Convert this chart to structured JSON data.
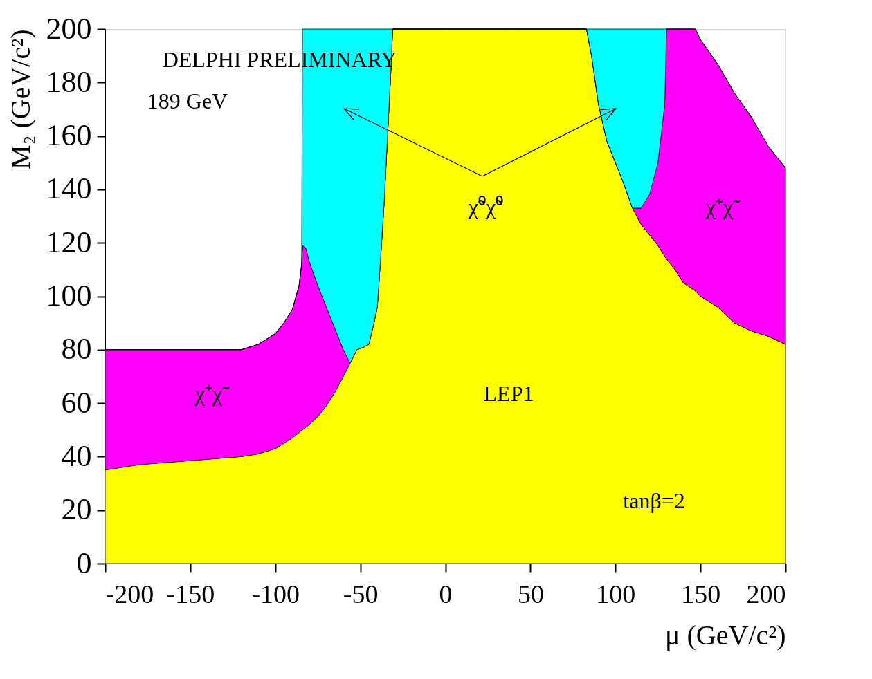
{
  "chart_data": {
    "type": "area",
    "stacked": true,
    "xlabel": "μ (GeV/c²)",
    "ylabel": "M₂ (GeV/c²)",
    "x": [
      -200,
      -180,
      -160,
      -140,
      -120,
      -110,
      -100,
      -95,
      -90,
      -86,
      -84.5,
      -84,
      -82,
      -80,
      -75,
      -70,
      -65,
      -60,
      -56,
      -52,
      -48,
      -45,
      -42,
      -40,
      -38,
      -36,
      -34,
      -32,
      -31,
      0,
      40,
      80,
      83,
      86,
      90,
      95,
      100,
      105,
      110,
      115,
      120,
      125,
      129,
      130,
      135,
      140,
      147,
      150,
      160,
      170,
      180,
      190,
      200
    ],
    "series": [
      {
        "color": "#ffff00",
        "values": [
          35,
          37,
          38,
          39,
          40,
          41,
          43,
          45,
          47,
          49,
          50,
          50,
          51,
          52,
          55,
          59,
          64,
          70,
          75,
          80,
          81,
          82,
          90,
          96,
          115,
          135,
          160,
          185,
          200,
          200,
          200,
          200,
          200,
          190,
          172,
          158,
          150,
          142,
          133,
          127,
          123,
          119,
          115,
          114,
          110,
          105,
          102,
          100,
          96,
          90,
          87,
          85,
          82
        ]
      },
      {
        "color": "#ff00ff",
        "values": [
          45,
          43,
          42,
          41,
          40,
          41,
          43,
          45,
          48,
          55,
          62,
          69,
          67,
          61,
          49,
          37,
          24,
          10,
          0,
          0,
          0,
          0,
          0,
          0,
          0,
          0,
          0,
          0,
          0,
          0,
          0,
          0,
          0,
          0,
          0,
          0,
          0,
          0,
          0,
          6,
          15,
          31,
          57,
          86,
          90,
          95,
          98,
          96,
          91,
          86,
          80,
          71,
          66
        ]
      },
      {
        "color": "#00ffff",
        "values": [
          0,
          0,
          0,
          0,
          0,
          0,
          0,
          0,
          0,
          0,
          0,
          81,
          82,
          87,
          96,
          104,
          112,
          120,
          125,
          120,
          119,
          118,
          110,
          104,
          85,
          65,
          40,
          15,
          0,
          0,
          0,
          0,
          0,
          10,
          28,
          42,
          50,
          58,
          67,
          67,
          62,
          50,
          28,
          0,
          0,
          0,
          0,
          0,
          0,
          0,
          0,
          0,
          0
        ]
      }
    ],
    "xlim": [
      -200,
      200
    ],
    "xticks": [
      -200,
      -150,
      -100,
      -50,
      0,
      50,
      100,
      150,
      200
    ],
    "ylim": [
      0,
      200
    ],
    "yticks": [
      0,
      20,
      40,
      60,
      80,
      100,
      120,
      140,
      160,
      180,
      200
    ],
    "grid": false,
    "legend": false,
    "annotations": [
      "DELPHI PRELIMINARY",
      "189 GeV",
      "χ̃⁰χ̃⁰",
      "χ̃⁺χ̃⁻",
      "χ̃⁺χ̃⁻",
      "LEP1",
      "tanβ=2"
    ]
  }
}
